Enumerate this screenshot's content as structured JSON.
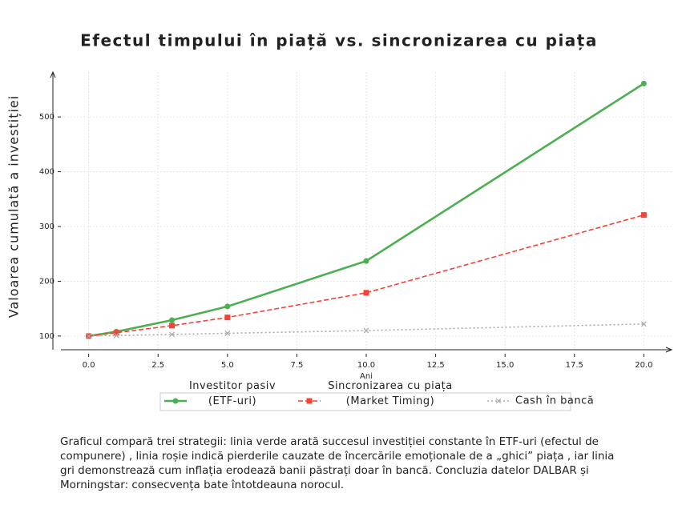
{
  "chart_data": {
    "type": "line",
    "title": "Efectul timpului în piață vs. sincronizarea cu piața",
    "x_label": "Ani",
    "y_label": "Valoarea cumulată a investiției",
    "x": [
      0,
      1,
      3,
      5,
      10,
      20
    ],
    "series": [
      {
        "name": "Investitor pasiv\n(ETF-uri)",
        "color": "#4caf50",
        "marker": "circle",
        "dash": "solid",
        "values": [
          100,
          108,
          129,
          154,
          237,
          561
        ]
      },
      {
        "name": "Sincronizarea cu piața\n(Market Timing)",
        "color": "#f44336",
        "marker": "square",
        "dash": "dashed",
        "values": [
          100,
          106,
          119,
          134,
          179,
          321
        ]
      },
      {
        "name": "Cash în bancă",
        "color": "#aaaaaa",
        "marker": "x",
        "dash": "dotted",
        "values": [
          100,
          101,
          103,
          105,
          110,
          122
        ]
      }
    ],
    "xlim": [
      -1,
      21
    ],
    "ylim": [
      75,
      582
    ],
    "xticks": [
      {
        "value": 0,
        "label": "0.0"
      },
      {
        "value": 2.5,
        "label": "2.5"
      },
      {
        "value": 5,
        "label": "5.0"
      },
      {
        "value": 7.5,
        "label": "7.5"
      },
      {
        "value": 10,
        "label": "10.0"
      },
      {
        "value": 12.5,
        "label": "12.5"
      },
      {
        "value": 15,
        "label": "15.0"
      },
      {
        "value": 17.5,
        "label": "17.5"
      },
      {
        "value": 20,
        "label": "20.0"
      }
    ],
    "yticks": [
      100,
      200,
      300,
      400,
      500
    ],
    "grid": true,
    "legend": "bottom"
  },
  "description": "Graficul compară trei strategii: linia verde arată succesul investiției constante în ETF-uri (efectul de compunere) , linia roșie indică pierderile cauzate de încercările emoționale de a „ghici” piața , iar linia gri demonstrează cum inflația erodează banii păstrați doar în bancă. Concluzia datelor DALBAR și Morningstar: consecvența bate întotdeauna norocul."
}
